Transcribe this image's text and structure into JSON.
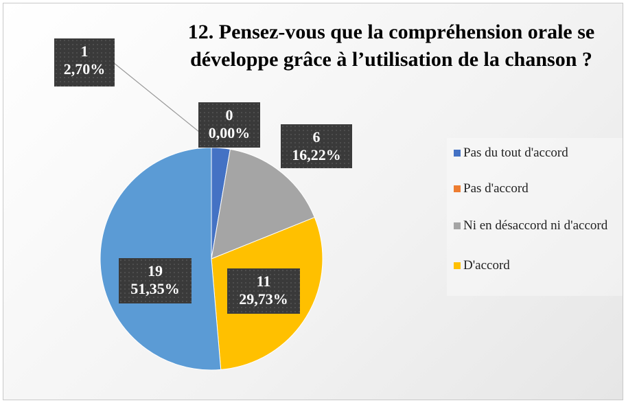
{
  "chart_data": {
    "type": "pie",
    "title": "12. Pensez-vous que la compréhension orale se développe grâce à l’utilisation de la chanson ?",
    "categories": [
      "Pas du tout d'accord",
      "Pas d'accord",
      "Ni en désaccord ni d'accord",
      "D'accord",
      null
    ],
    "values": [
      1,
      0,
      6,
      11,
      19
    ],
    "percents": [
      2.7,
      0,
      16.22,
      29.73,
      51.35
    ],
    "percent_labels": [
      "2,70%",
      "0,00%",
      "16,22%",
      "29,73%",
      "51,35%"
    ],
    "colors": [
      "#4472c4",
      "#ed7d31",
      "#a5a5a5",
      "#ffc000",
      "#5b9bd5"
    ],
    "legend": "right"
  }
}
